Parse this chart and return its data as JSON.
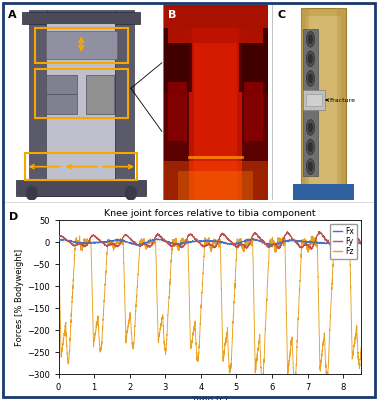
{
  "title": "Knee joint forces relative to tibia component",
  "xlabel": "Time [s]",
  "ylabel": "Forces [% Bodyweight]",
  "xlim": [
    0,
    8.5
  ],
  "ylim": [
    -300,
    50
  ],
  "yticks": [
    50,
    0,
    -50,
    -100,
    -150,
    -200,
    -250,
    -300
  ],
  "xticks": [
    0,
    1,
    2,
    3,
    4,
    5,
    6,
    7,
    8
  ],
  "legend_labels": [
    "Fx",
    "Fy",
    "Fz"
  ],
  "legend_colors": [
    "#4472C4",
    "#C05050",
    "#E8A020"
  ],
  "panel_labels": [
    "A",
    "B",
    "C",
    "D"
  ],
  "border_color": "#1A3A6B",
  "background_color": "#FFFFFF",
  "top_bg": "#F5F5F5",
  "panel_A_bg": "#E8E8EC",
  "panel_B_bg": "#8B0000",
  "panel_C_bg": "#D4B878",
  "machine_dark": "#4A4A5A",
  "machine_mid": "#6A6A7A",
  "yellow_orange": "#F5A800",
  "Fz_freq": 1.1
}
